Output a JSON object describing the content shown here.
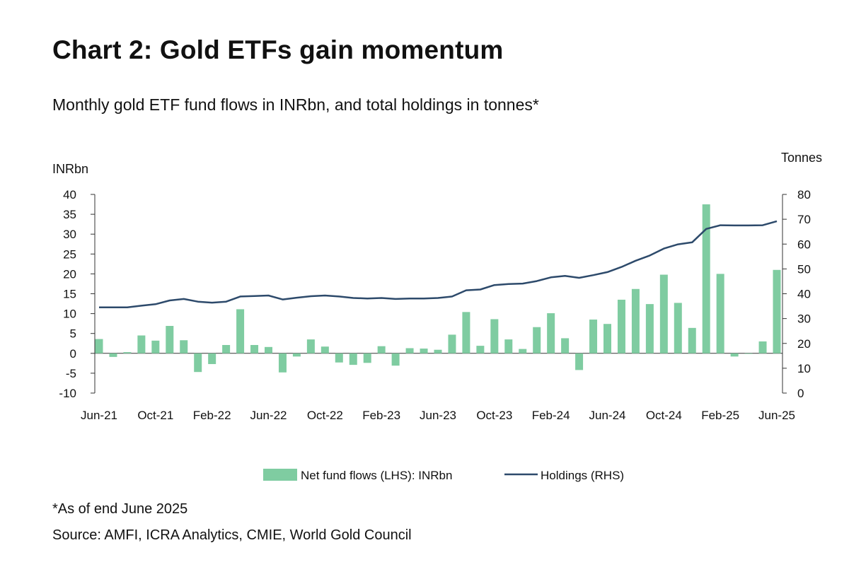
{
  "title": "Chart 2: Gold ETFs gain momentum",
  "subtitle": "Monthly gold ETF fund flows in INRbn, and total holdings in tonnes*",
  "note": "*As of end June 2025",
  "source": "Source: AMFI, ICRA Analytics, CMIE, World Gold Council",
  "colors": {
    "bars": "#7fcca1",
    "line": "#2d4a6b",
    "axis": "#333333"
  },
  "chart_data": {
    "type": "bar",
    "left_axis_label": "INRbn",
    "right_axis_label": "Tonnes",
    "ylim_left": [
      -10,
      40
    ],
    "yticks_left": [
      -10,
      -5,
      0,
      5,
      10,
      15,
      20,
      25,
      30,
      35,
      40
    ],
    "ylim_right": [
      0,
      80
    ],
    "yticks_right": [
      0,
      10,
      20,
      30,
      40,
      50,
      60,
      70,
      80
    ],
    "xtick_labels": [
      "Jun-21",
      "Oct-21",
      "Feb-22",
      "Jun-22",
      "Oct-22",
      "Feb-23",
      "Jun-23",
      "Oct-23",
      "Feb-24",
      "Jun-24",
      "Oct-24",
      "Feb-25",
      "Jun-25"
    ],
    "categories": [
      "Jun-21",
      "Jul-21",
      "Aug-21",
      "Sep-21",
      "Oct-21",
      "Nov-21",
      "Dec-21",
      "Jan-22",
      "Feb-22",
      "Mar-22",
      "Apr-22",
      "May-22",
      "Jun-22",
      "Jul-22",
      "Aug-22",
      "Sep-22",
      "Oct-22",
      "Nov-22",
      "Dec-22",
      "Jan-23",
      "Feb-23",
      "Mar-23",
      "Apr-23",
      "May-23",
      "Jun-23",
      "Jul-23",
      "Aug-23",
      "Sep-23",
      "Oct-23",
      "Nov-23",
      "Dec-23",
      "Jan-24",
      "Feb-24",
      "Mar-24",
      "Apr-24",
      "May-24",
      "Jun-24",
      "Jul-24",
      "Aug-24",
      "Sep-24",
      "Oct-24",
      "Nov-24",
      "Dec-24",
      "Jan-25",
      "Feb-25",
      "Mar-25",
      "Apr-25",
      "May-25",
      "Jun-25"
    ],
    "series": [
      {
        "name": "Net fund flows (LHS): INRbn",
        "type": "bar",
        "axis": "left",
        "values": [
          3.6,
          -0.9,
          0.3,
          4.5,
          3.2,
          6.9,
          3.3,
          -4.7,
          -2.7,
          2.1,
          11.1,
          2.1,
          1.6,
          -4.8,
          -0.8,
          3.5,
          1.7,
          -2.3,
          -2.9,
          -2.4,
          1.8,
          -3.1,
          1.3,
          1.2,
          0.9,
          4.7,
          10.4,
          1.9,
          8.6,
          3.5,
          1.1,
          6.6,
          10.1,
          3.8,
          -4.2,
          8.5,
          7.4,
          13.5,
          16.2,
          12.4,
          19.8,
          12.7,
          6.4,
          37.5,
          20.0,
          -0.8,
          -0.1,
          3.0,
          21.0
        ]
      },
      {
        "name": "Holdings (RHS)",
        "type": "line",
        "axis": "right",
        "values": [
          34.5,
          34.5,
          34.5,
          35.2,
          35.8,
          37.3,
          37.9,
          36.8,
          36.4,
          36.8,
          38.9,
          39.1,
          39.3,
          37.7,
          38.4,
          39.0,
          39.3,
          38.9,
          38.3,
          38.1,
          38.3,
          37.9,
          38.1,
          38.1,
          38.3,
          38.9,
          41.4,
          41.7,
          43.5,
          43.9,
          44.1,
          45.1,
          46.6,
          47.2,
          46.4,
          47.5,
          48.7,
          50.8,
          53.3,
          55.4,
          58.2,
          59.9,
          60.7,
          66.1,
          67.6,
          67.5,
          67.5,
          67.6,
          69.2
        ]
      }
    ],
    "legend": "bottom-center",
    "grid": false
  }
}
